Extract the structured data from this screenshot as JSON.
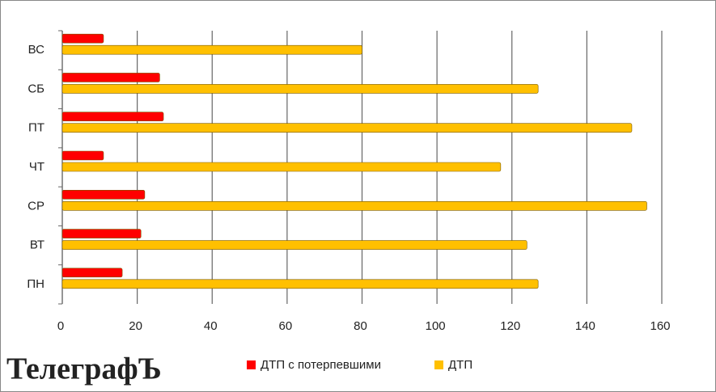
{
  "chart_data": {
    "type": "hbar",
    "categories": [
      "ПН",
      "ВТ",
      "СР",
      "ЧТ",
      "ПТ",
      "СБ",
      "ВС"
    ],
    "series": [
      {
        "name": "ДТП с потерпевшими",
        "color": "#ff0000",
        "values": [
          16,
          21,
          22,
          11,
          27,
          26,
          11
        ]
      },
      {
        "name": "ДТП",
        "color": "#ffc000",
        "values": [
          127,
          124,
          156,
          117,
          152,
          127,
          80
        ]
      }
    ],
    "xlim": [
      0,
      160
    ],
    "xticks": [
      0,
      20,
      40,
      60,
      80,
      100,
      120,
      140,
      160
    ],
    "grid": true,
    "legend": "bottom",
    "logo": "ТелеграфЪ"
  }
}
